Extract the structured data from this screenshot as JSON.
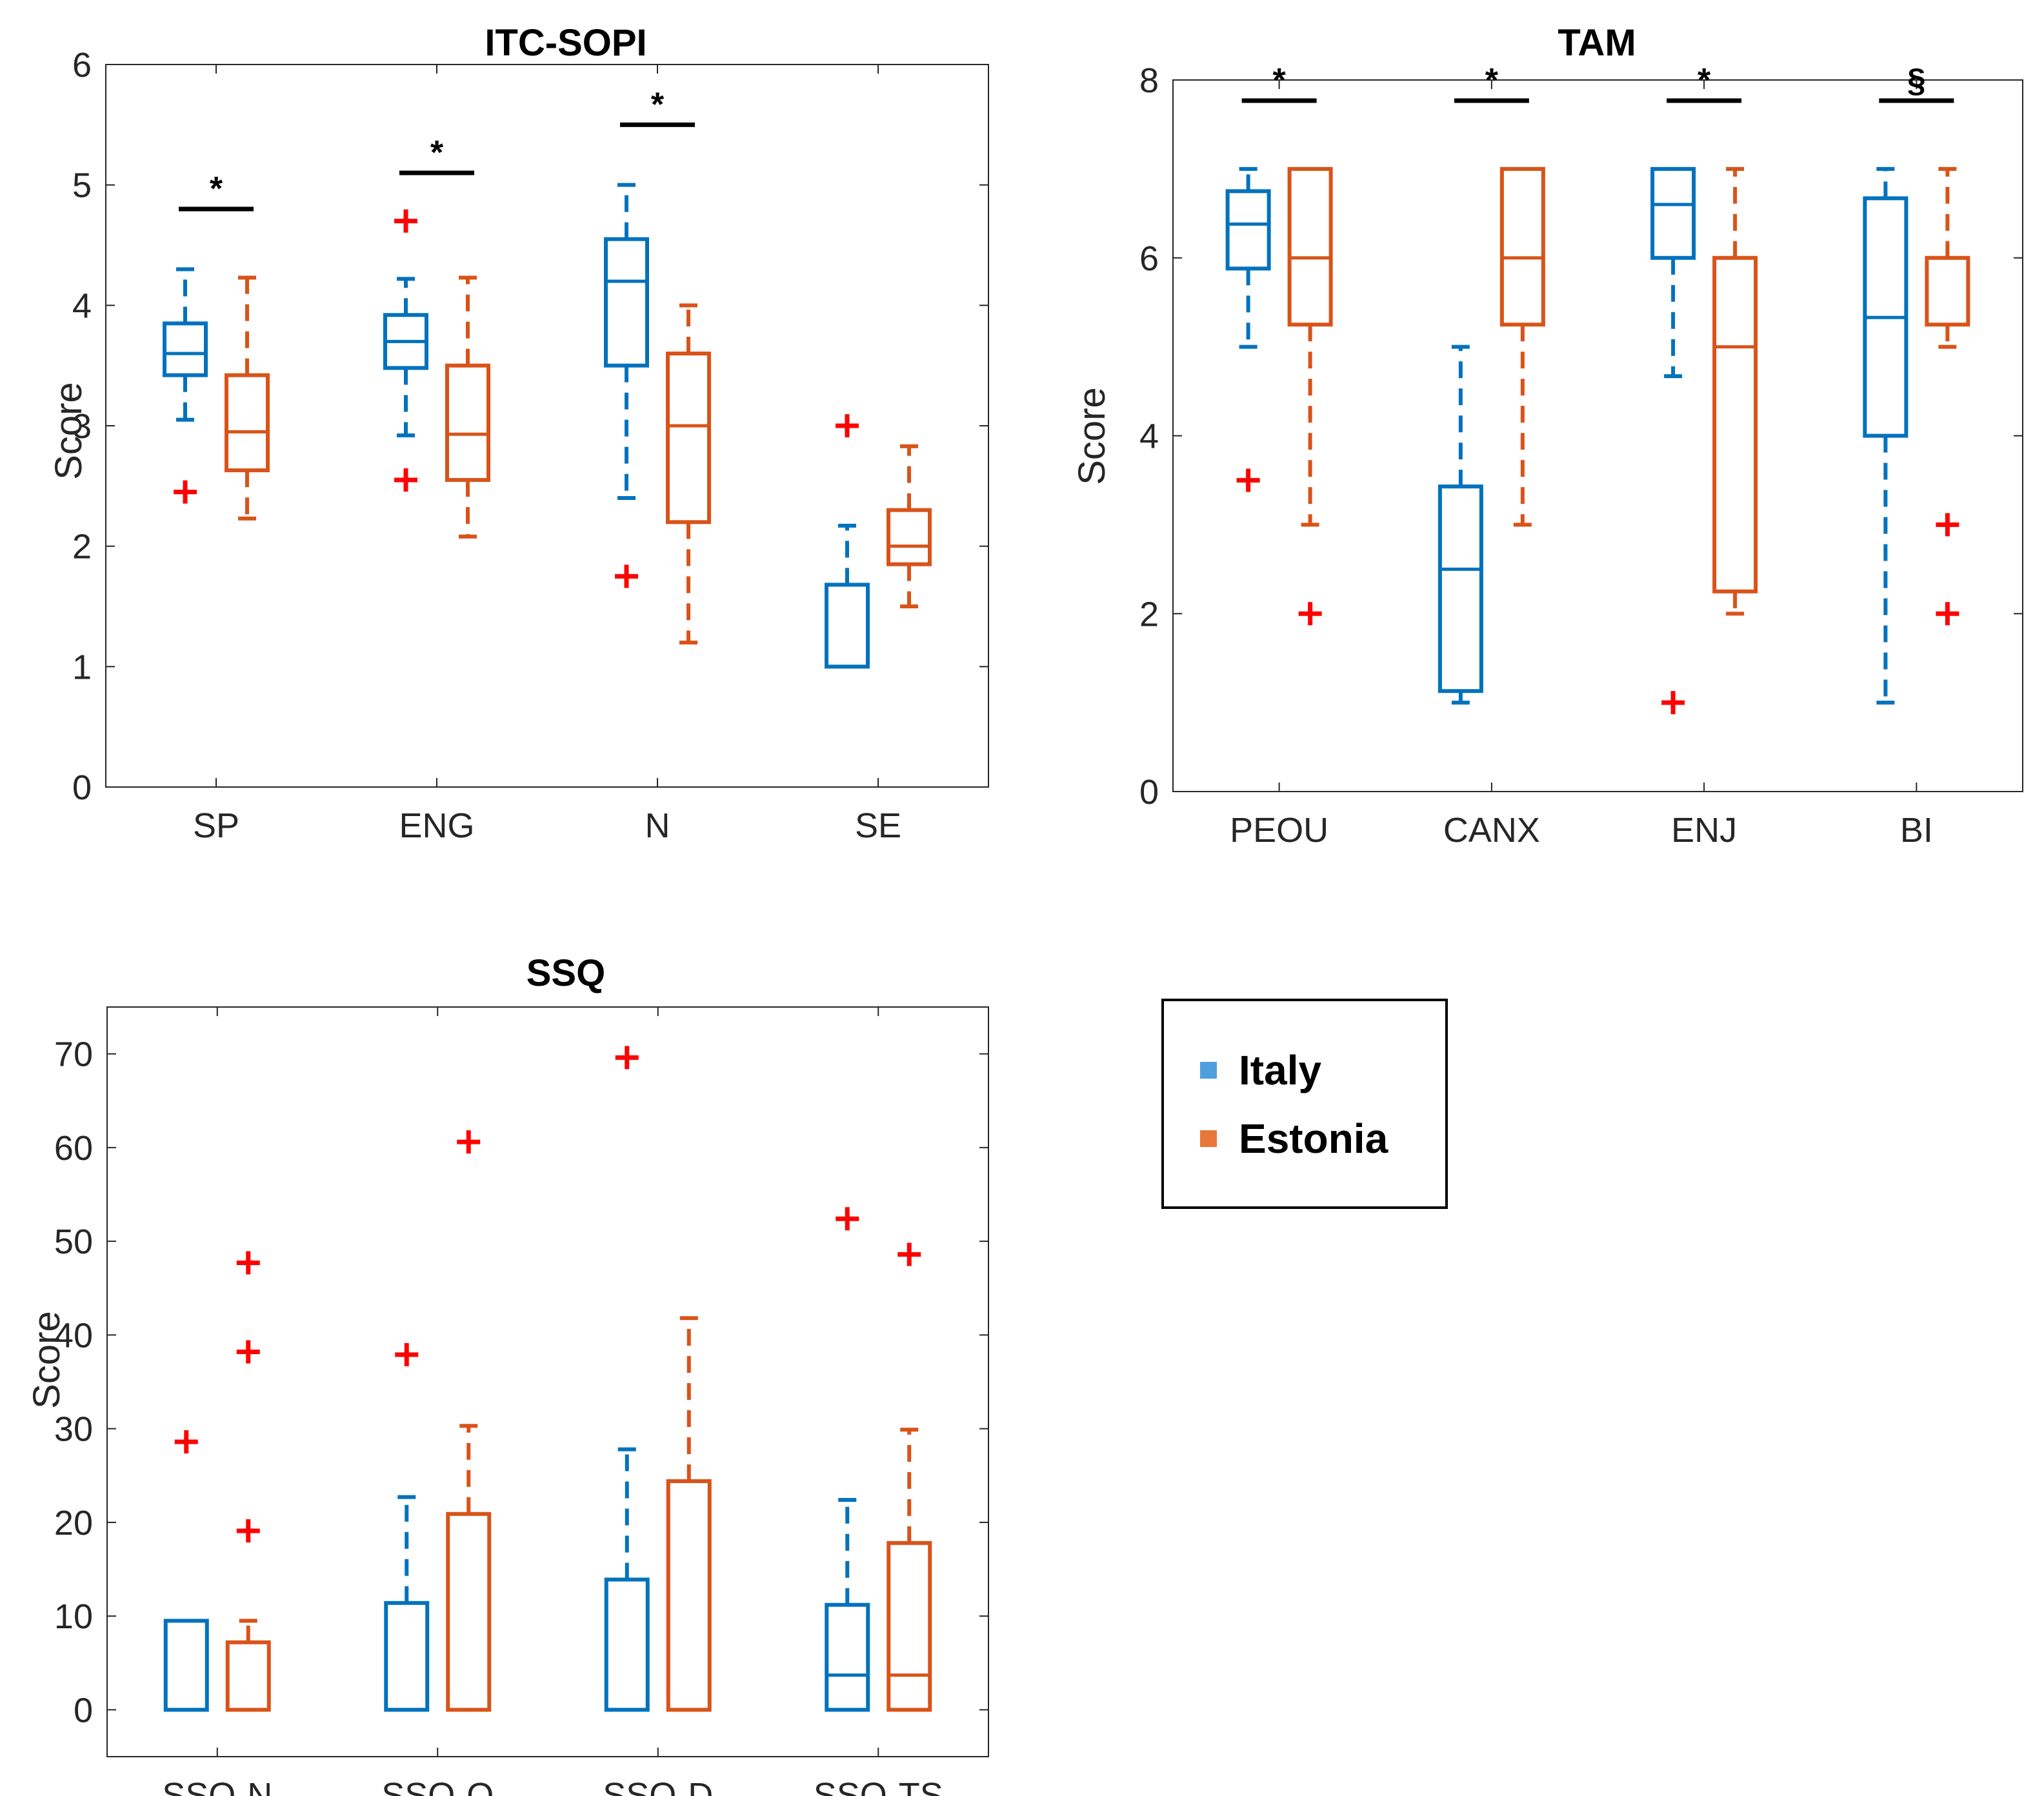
{
  "legend": {
    "items": [
      {
        "label": "Italy",
        "color": "#0072bd",
        "swatch_color": "#4f9fdc"
      },
      {
        "label": "Estonia",
        "color": "#d95319",
        "swatch_color": "#e8783a"
      }
    ]
  },
  "chart_data": [
    {
      "type": "box",
      "title": "ITC-SOPI",
      "ylabel": "Score",
      "ylim": [
        0,
        6
      ],
      "yticks": [
        0,
        1,
        2,
        3,
        4,
        5,
        6
      ],
      "categories": [
        "SP",
        "ENG",
        "N",
        "SE"
      ],
      "series": [
        {
          "name": "Italy",
          "boxes": [
            {
              "whisker_low": 3.05,
              "q1": 3.42,
              "median": 3.6,
              "q3": 3.85,
              "whisker_high": 4.3,
              "outliers": [
                2.45
              ]
            },
            {
              "whisker_low": 2.92,
              "q1": 3.48,
              "median": 3.7,
              "q3": 3.92,
              "whisker_high": 4.22,
              "outliers": [
                4.7,
                2.55
              ]
            },
            {
              "whisker_low": 2.4,
              "q1": 3.5,
              "median": 4.2,
              "q3": 4.55,
              "whisker_high": 5.0,
              "outliers": [
                1.75
              ]
            },
            {
              "whisker_low": 1.0,
              "q1": 1.0,
              "median": 1.0,
              "q3": 1.68,
              "whisker_high": 2.17,
              "outliers": [
                3.0
              ]
            }
          ]
        },
        {
          "name": "Estonia",
          "boxes": [
            {
              "whisker_low": 2.23,
              "q1": 2.63,
              "median": 2.95,
              "q3": 3.42,
              "whisker_high": 4.23,
              "outliers": []
            },
            {
              "whisker_low": 2.08,
              "q1": 2.55,
              "median": 2.93,
              "q3": 3.5,
              "whisker_high": 4.23,
              "outliers": []
            },
            {
              "whisker_low": 1.2,
              "q1": 2.2,
              "median": 3.0,
              "q3": 3.6,
              "whisker_high": 4.0,
              "outliers": []
            },
            {
              "whisker_low": 1.5,
              "q1": 1.85,
              "median": 2.0,
              "q3": 2.3,
              "whisker_high": 2.83,
              "outliers": []
            }
          ]
        }
      ],
      "significance": [
        "*",
        "*",
        "*",
        ""
      ]
    },
    {
      "type": "box",
      "title": "TAM",
      "ylabel": "Score",
      "ylim": [
        0,
        8
      ],
      "yticks": [
        0,
        2,
        4,
        6,
        8
      ],
      "categories": [
        "PEOU",
        "CANX",
        "ENJ",
        "BI"
      ],
      "series": [
        {
          "name": "Italy",
          "boxes": [
            {
              "whisker_low": 5.0,
              "q1": 5.88,
              "median": 6.38,
              "q3": 6.75,
              "whisker_high": 7.0,
              "outliers": [
                3.5
              ]
            },
            {
              "whisker_low": 1.0,
              "q1": 1.13,
              "median": 2.5,
              "q3": 3.43,
              "whisker_high": 5.0,
              "outliers": []
            },
            {
              "whisker_low": 4.67,
              "q1": 6.0,
              "median": 6.6,
              "q3": 7.0,
              "whisker_high": 7.0,
              "outliers": [
                1.0
              ]
            },
            {
              "whisker_low": 1.0,
              "q1": 4.0,
              "median": 5.33,
              "q3": 6.67,
              "whisker_high": 7.0,
              "outliers": []
            }
          ]
        },
        {
          "name": "Estonia",
          "boxes": [
            {
              "whisker_low": 3.0,
              "q1": 5.25,
              "median": 6.0,
              "q3": 7.0,
              "whisker_high": 7.0,
              "outliers": [
                2.0
              ]
            },
            {
              "whisker_low": 3.0,
              "q1": 5.25,
              "median": 6.0,
              "q3": 7.0,
              "whisker_high": 7.0,
              "outliers": []
            },
            {
              "whisker_low": 2.0,
              "q1": 2.25,
              "median": 5.0,
              "q3": 6.0,
              "whisker_high": 7.0,
              "outliers": []
            },
            {
              "whisker_low": 5.0,
              "q1": 5.25,
              "median": 6.0,
              "q3": 6.0,
              "whisker_high": 7.0,
              "outliers": [
                3.0,
                2.0
              ]
            }
          ]
        }
      ],
      "significance": [
        "*",
        "*",
        "*",
        "§"
      ]
    },
    {
      "type": "box",
      "title": "SSQ",
      "ylabel": "Score",
      "ylim": [
        -5,
        75
      ],
      "yticks": [
        0,
        10,
        20,
        30,
        40,
        50,
        60,
        70
      ],
      "categories": [
        "SSQ-N",
        "SSQ-O",
        "SSQ-D",
        "SSQ-TS"
      ],
      "series": [
        {
          "name": "Italy",
          "boxes": [
            {
              "whisker_low": 0,
              "q1": 0,
              "median": 0,
              "q3": 9.5,
              "whisker_high": 9.5,
              "outliers": [
                28.6
              ]
            },
            {
              "whisker_low": 0,
              "q1": 0,
              "median": 0,
              "q3": 11.4,
              "whisker_high": 22.7,
              "outliers": [
                37.9
              ]
            },
            {
              "whisker_low": 0,
              "q1": 0,
              "median": 0,
              "q3": 13.9,
              "whisker_high": 27.8,
              "outliers": [
                69.6
              ]
            },
            {
              "whisker_low": 0,
              "q1": 0,
              "median": 3.7,
              "q3": 11.2,
              "whisker_high": 22.4,
              "outliers": [
                52.4
              ]
            }
          ]
        },
        {
          "name": "Estonia",
          "boxes": [
            {
              "whisker_low": 0,
              "q1": 0,
              "median": 0,
              "q3": 7.2,
              "whisker_high": 9.5,
              "outliers": [
                47.7,
                38.2,
                19.1
              ]
            },
            {
              "whisker_low": 0,
              "q1": 0,
              "median": 0,
              "q3": 20.9,
              "whisker_high": 30.3,
              "outliers": [
                60.6
              ]
            },
            {
              "whisker_low": 0,
              "q1": 0,
              "median": 0,
              "q3": 24.4,
              "whisker_high": 41.8,
              "outliers": []
            },
            {
              "whisker_low": 0,
              "q1": 0,
              "median": 3.7,
              "q3": 17.8,
              "whisker_high": 29.9,
              "outliers": [
                48.6
              ]
            }
          ]
        }
      ],
      "significance": [
        "",
        "",
        "",
        ""
      ]
    }
  ]
}
